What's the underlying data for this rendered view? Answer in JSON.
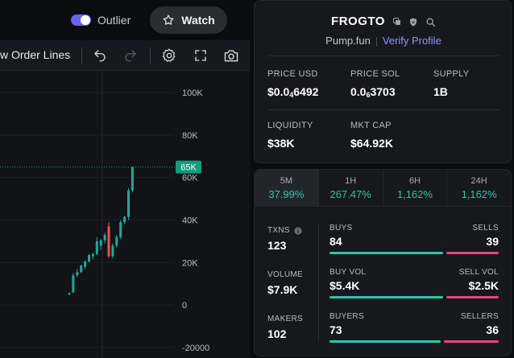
{
  "header": {
    "outlier_label": "Outlier",
    "watch_label": "Watch"
  },
  "toolbar": {
    "order_lines_label": "w Order Lines"
  },
  "chart_data": {
    "type": "candlestick",
    "y_ticks": [
      "100K",
      "80K",
      "60K",
      "40K",
      "20K",
      "0",
      "-20000"
    ],
    "y_tick_values": [
      100000,
      80000,
      60000,
      40000,
      20000,
      0,
      -20000
    ],
    "ylim": [
      -20000,
      100000
    ],
    "current_price_label": "65K",
    "current_price": 64920,
    "colors": {
      "up": "#26a69a",
      "down": "#ef5350",
      "price_tag": "#159a7e"
    },
    "candles": [
      {
        "o": 5000,
        "h": 6000,
        "l": 4500,
        "c": 5500
      },
      {
        "o": 6000,
        "h": 15000,
        "l": 5500,
        "c": 14000
      },
      {
        "o": 14000,
        "h": 17000,
        "l": 13000,
        "c": 15500
      },
      {
        "o": 15500,
        "h": 19000,
        "l": 15000,
        "c": 18500
      },
      {
        "o": 18000,
        "h": 21000,
        "l": 17000,
        "c": 20500
      },
      {
        "o": 20500,
        "h": 24000,
        "l": 20000,
        "c": 23500
      },
      {
        "o": 23000,
        "h": 24500,
        "l": 21500,
        "c": 24000
      },
      {
        "o": 24000,
        "h": 32000,
        "l": 23500,
        "c": 30000
      },
      {
        "o": 28000,
        "h": 31000,
        "l": 26000,
        "c": 30500
      },
      {
        "o": 30500,
        "h": 34000,
        "l": 29000,
        "c": 33000
      },
      {
        "o": 37000,
        "h": 39000,
        "l": 22000,
        "c": 23000
      },
      {
        "o": 23000,
        "h": 29000,
        "l": 22000,
        "c": 28000
      },
      {
        "o": 28000,
        "h": 33000,
        "l": 27000,
        "c": 32000
      },
      {
        "o": 32000,
        "h": 40000,
        "l": 31000,
        "c": 39000
      },
      {
        "o": 39000,
        "h": 42000,
        "l": 38000,
        "c": 41500
      },
      {
        "o": 41500,
        "h": 55000,
        "l": 40000,
        "c": 54000
      },
      {
        "o": 54000,
        "h": 65000,
        "l": 53000,
        "c": 64920
      }
    ]
  },
  "token": {
    "name": "FROGTO",
    "source": "Pump.fun",
    "verify_label": "Verify Profile",
    "metrics": [
      {
        "label": "PRICE USD",
        "prefix": "$0.0",
        "sub": "4",
        "value": "6492"
      },
      {
        "label": "PRICE SOL",
        "prefix": "0.0",
        "sub": "6",
        "value": "3703"
      },
      {
        "label": "SUPPLY",
        "prefix": "",
        "sub": "",
        "value": "1B"
      },
      {
        "label": "LIQUIDITY",
        "prefix": "",
        "sub": "",
        "value": "$38K"
      },
      {
        "label": "MKT CAP",
        "prefix": "",
        "sub": "",
        "value": "$64.92K"
      }
    ]
  },
  "timeframes": [
    {
      "label": "5M",
      "value": "37.99%"
    },
    {
      "label": "1H",
      "value": "267.47%"
    },
    {
      "label": "6H",
      "value": "1,162%"
    },
    {
      "label": "24H",
      "value": "1,162%"
    }
  ],
  "stats": {
    "txns_label": "TXNS",
    "txns_value": "123",
    "volume_label": "VOLUME",
    "volume_value": "$7.9K",
    "makers_label": "MAKERS",
    "makers_value": "102",
    "buys_label": "BUYS",
    "buys_value": "84",
    "sells_label": "SELLS",
    "sells_value": "39",
    "buy_vol_label": "BUY VOL",
    "buy_vol_value": "$5.4K",
    "sell_vol_label": "SELL VOL",
    "sell_vol_value": "$2.5K",
    "buyers_label": "BUYERS",
    "buyers_value": "73",
    "sellers_label": "SELLERS",
    "sellers_value": "36",
    "ratios": {
      "buys": 0.683,
      "buy_vol": 0.684,
      "buyers": 0.67
    },
    "colors": {
      "buy": "#2ec6a8",
      "sell": "#e8467a"
    }
  }
}
